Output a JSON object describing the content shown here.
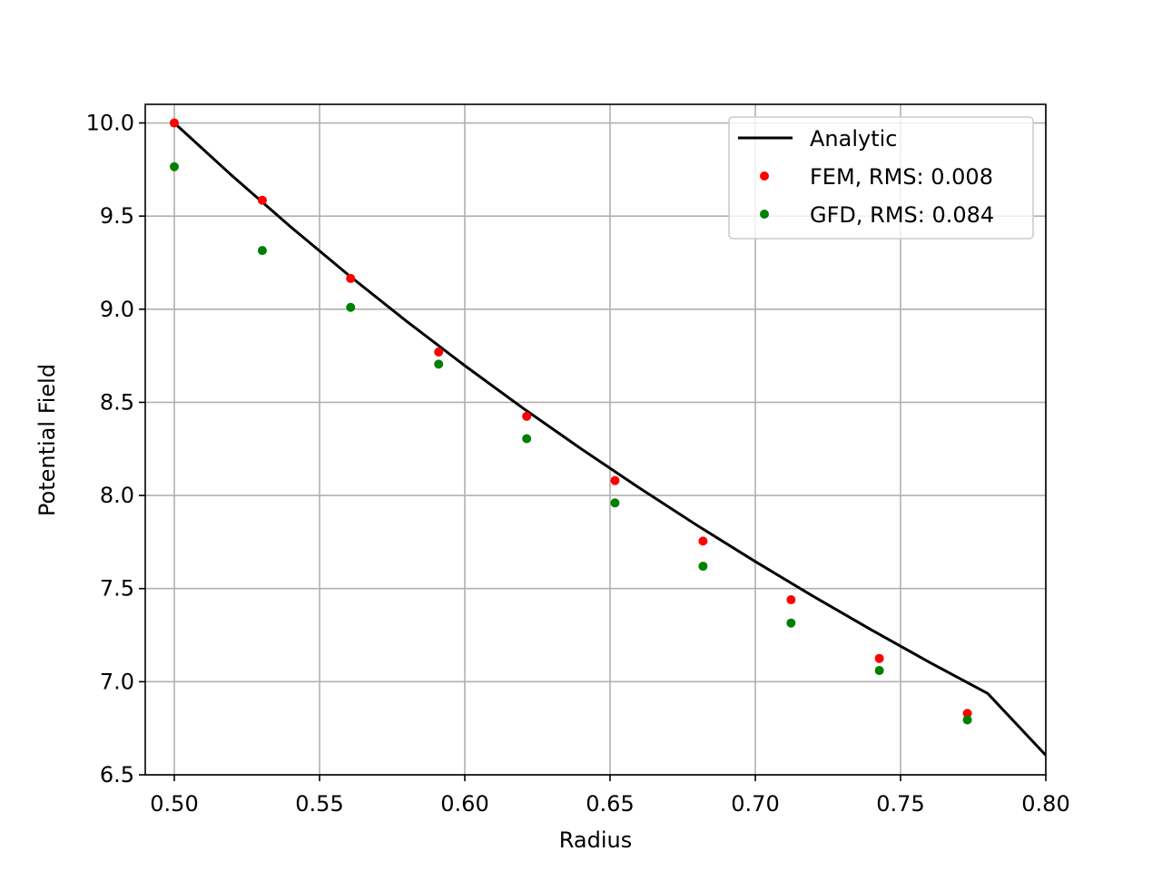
{
  "chart_data": {
    "type": "line",
    "title": "",
    "xlabel": "Radius",
    "ylabel": "Potential Field",
    "xlim": [
      0.49,
      0.8
    ],
    "ylim": [
      6.5,
      10.1
    ],
    "x_ticks": [
      0.5,
      0.55,
      0.6,
      0.65,
      0.7,
      0.75,
      0.8
    ],
    "x_tick_labels": [
      "0.50",
      "0.55",
      "0.60",
      "0.65",
      "0.70",
      "0.75",
      "0.80"
    ],
    "y_ticks": [
      6.5,
      7.0,
      7.5,
      8.0,
      8.5,
      9.0,
      9.5,
      10.0
    ],
    "y_tick_labels": [
      "6.5",
      "7.0",
      "7.5",
      "8.0",
      "8.5",
      "9.0",
      "9.5",
      "10.0"
    ],
    "grid": true,
    "legend_position": "top-right",
    "series": [
      {
        "name": "Analytic",
        "style": "line",
        "color": "#000000",
        "x": [
          0.5,
          0.52,
          0.54,
          0.56,
          0.58,
          0.6,
          0.62,
          0.64,
          0.66,
          0.68,
          0.7,
          0.72,
          0.74,
          0.76,
          0.78,
          0.8
        ],
        "y": [
          10.0,
          9.715,
          9.443,
          9.183,
          8.935,
          8.697,
          8.469,
          8.251,
          8.041,
          7.839,
          7.645,
          7.458,
          7.278,
          7.104,
          6.937,
          6.605
        ]
      },
      {
        "name": "FEM, RMS: 0.008",
        "style": "marker",
        "color": "#ff0000",
        "x": [
          0.5,
          0.5303,
          0.5607,
          0.591,
          0.6213,
          0.6517,
          0.682,
          0.7123,
          0.7427,
          0.773
        ],
        "y": [
          10.0,
          9.585,
          9.165,
          8.77,
          8.425,
          8.08,
          7.755,
          7.44,
          7.125,
          6.83
        ]
      },
      {
        "name": "GFD, RMS: 0.084",
        "style": "marker",
        "color": "#008000",
        "x": [
          0.5,
          0.5303,
          0.5607,
          0.591,
          0.6213,
          0.6517,
          0.682,
          0.7123,
          0.7427,
          0.773
        ],
        "y": [
          9.765,
          9.315,
          9.01,
          8.705,
          8.305,
          7.96,
          7.62,
          7.315,
          7.06,
          6.795
        ]
      }
    ]
  }
}
